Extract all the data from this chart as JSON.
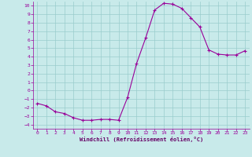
{
  "x": [
    0,
    1,
    2,
    3,
    4,
    5,
    6,
    7,
    8,
    9,
    10,
    11,
    12,
    13,
    14,
    15,
    16,
    17,
    18,
    19,
    20,
    21,
    22,
    23
  ],
  "y": [
    -1.5,
    -1.8,
    -2.5,
    -2.7,
    -3.2,
    -3.5,
    -3.5,
    -3.4,
    -3.4,
    -3.5,
    -0.8,
    3.2,
    6.2,
    9.5,
    10.3,
    10.2,
    9.7,
    8.6,
    7.5,
    4.8,
    4.3,
    4.2,
    4.2,
    4.7
  ],
  "line_color": "#990099",
  "marker": "+",
  "marker_color": "#990099",
  "bg_color": "#c8eaea",
  "grid_color": "#99cccc",
  "xlabel": "Windchill (Refroidissement éolien,°C)",
  "xlabel_color": "#660066",
  "tick_color": "#990099",
  "ylim": [
    -4.5,
    10.5
  ],
  "xlim": [
    -0.5,
    23.5
  ],
  "yticks": [
    10,
    9,
    8,
    7,
    6,
    5,
    4,
    3,
    2,
    1,
    0,
    -1,
    -2,
    -3,
    -4
  ],
  "xticks": [
    0,
    1,
    2,
    3,
    4,
    5,
    6,
    7,
    8,
    9,
    10,
    11,
    12,
    13,
    14,
    15,
    16,
    17,
    18,
    19,
    20,
    21,
    22,
    23
  ]
}
